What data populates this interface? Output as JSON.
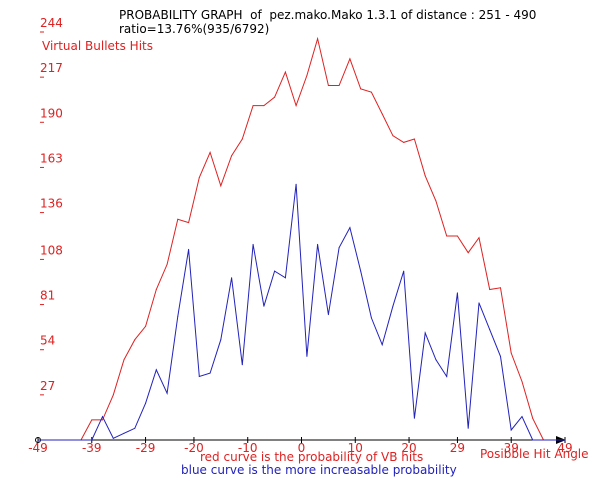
{
  "header": {
    "line1": "PROBABILITY GRAPH  of  pez.mako.Mako 1.3.1 of distance : 251 - 490",
    "line2": "ratio=13.76%(935/6792)"
  },
  "captions": {
    "red": "red curve is the probability of VB hits",
    "blue": "blue curve is the more increasable probability"
  },
  "colors": {
    "red": "#dd2222",
    "blue": "#2222bb",
    "axis": "#000000"
  },
  "chart_data": {
    "type": "line",
    "ylabel": "Virtual Bullets Hits",
    "xlabel": "Posibble Hit Angle",
    "ylim": [
      0,
      244
    ],
    "xlim": [
      -49,
      49
    ],
    "yticks": [
      "27",
      "54",
      "81",
      "108",
      "136",
      "163",
      "190",
      "217",
      "244"
    ],
    "xticks": [
      "-49",
      "-39",
      "-29",
      "-20",
      "-10",
      "0",
      "10",
      "20",
      "29",
      "39",
      "49"
    ],
    "grid": false,
    "legend": "none",
    "x": [
      -49,
      -47,
      -45,
      -43,
      -41,
      -39,
      -37,
      -35,
      -33,
      -31,
      -29,
      -27,
      -25,
      -23,
      -21,
      -19,
      -17,
      -15,
      -13,
      -11,
      -9,
      -7,
      -5,
      -3,
      -1,
      1,
      3,
      5,
      7,
      9,
      11,
      13,
      15,
      17,
      19,
      21,
      23,
      25,
      27,
      29,
      31,
      33,
      35,
      37,
      39,
      41,
      43,
      45,
      47,
      49
    ],
    "series": [
      {
        "values": [
          0,
          0,
          0,
          0,
          0,
          12,
          12,
          27,
          48,
          60,
          68,
          90,
          105,
          132,
          130,
          157,
          172,
          152,
          170,
          180,
          200,
          200,
          205,
          220,
          200,
          218,
          240,
          212,
          212,
          228,
          210,
          208,
          195,
          182,
          178,
          180,
          158,
          143,
          122,
          122,
          112,
          121,
          90,
          91,
          52,
          35,
          13,
          0,
          0,
          0
        ]
      },
      {
        "values": [
          0,
          0,
          0,
          0,
          0,
          0,
          14,
          1,
          4,
          7,
          22,
          42,
          28,
          74,
          114,
          38,
          40,
          60,
          97,
          45,
          117,
          80,
          101,
          97,
          153,
          50,
          117,
          75,
          115,
          127,
          101,
          73,
          57,
          80,
          101,
          13,
          64,
          48,
          38,
          88,
          7,
          82,
          66,
          50,
          6,
          14,
          0,
          0,
          0,
          0
        ]
      }
    ]
  }
}
